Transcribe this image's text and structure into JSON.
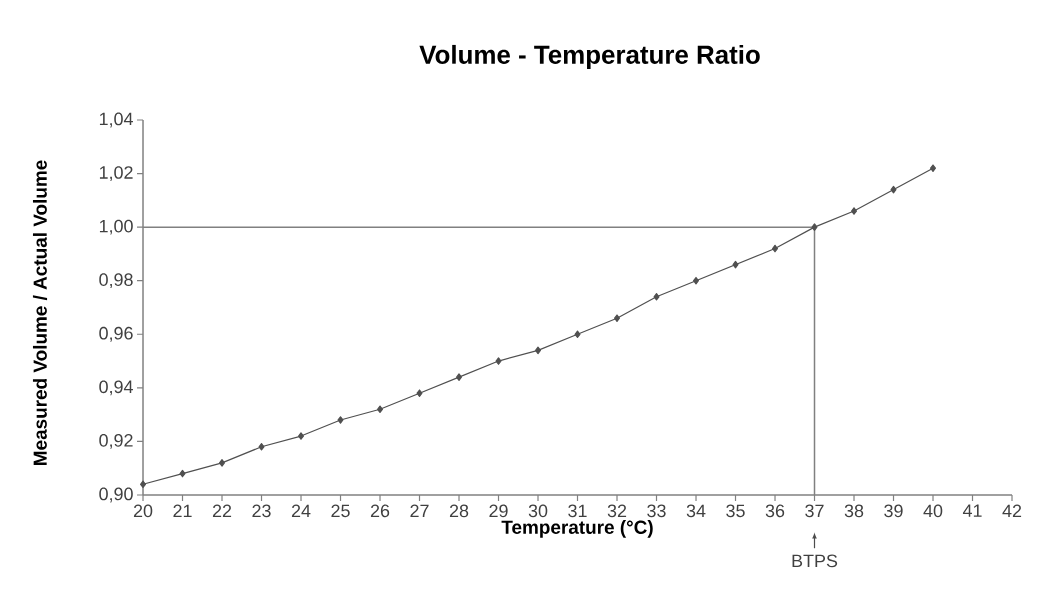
{
  "chart_data": {
    "type": "line",
    "title": "Volume - Temperature Ratio",
    "xlabel": "Temperature (°C)",
    "ylabel": "Measured Volume / Actual Volume",
    "x": [
      20,
      21,
      22,
      23,
      24,
      25,
      26,
      27,
      28,
      29,
      30,
      31,
      32,
      33,
      34,
      35,
      36,
      37,
      38,
      39,
      40
    ],
    "series": [
      {
        "color": "#505050",
        "values": [
          0.904,
          0.908,
          0.912,
          0.918,
          0.922,
          0.928,
          0.932,
          0.938,
          0.944,
          0.95,
          0.954,
          0.96,
          0.966,
          0.974,
          0.98,
          0.986,
          0.992,
          1.0,
          1.006,
          1.014,
          1.022
        ]
      }
    ],
    "marker": "diamond",
    "line_style": "solid",
    "grid": false,
    "xlim": [
      20,
      42
    ],
    "xticks": [
      20,
      21,
      22,
      23,
      24,
      25,
      26,
      27,
      28,
      29,
      30,
      31,
      32,
      33,
      34,
      35,
      36,
      37,
      38,
      39,
      40,
      41,
      42
    ],
    "ylim": [
      0.9,
      1.04
    ],
    "yticks": [
      {
        "value": 0.9,
        "label": "0,90"
      },
      {
        "value": 0.92,
        "label": "0,92"
      },
      {
        "value": 0.94,
        "label": "0,94"
      },
      {
        "value": 0.96,
        "label": "0,96"
      },
      {
        "value": 0.98,
        "label": "0,98"
      },
      {
        "value": 1.0,
        "label": "1,00"
      },
      {
        "value": 1.02,
        "label": "1,02"
      },
      {
        "value": 1.04,
        "label": "1,04"
      }
    ],
    "ref_lines": [
      {
        "axis": "y",
        "value": 1.0,
        "color": "#808080"
      },
      {
        "axis": "x",
        "value": 37,
        "color": "#808080"
      }
    ],
    "annotations": [
      "BTPS"
    ]
  }
}
